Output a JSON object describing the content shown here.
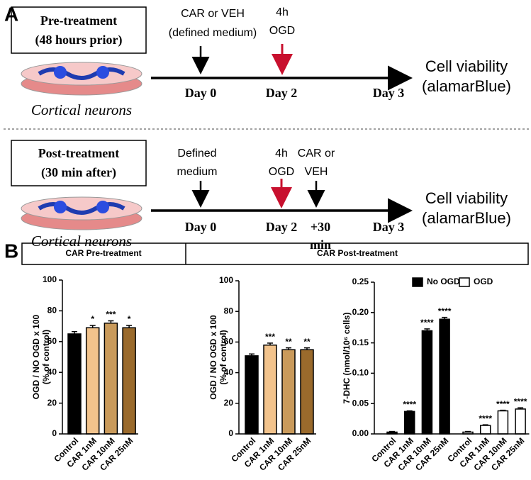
{
  "panel_a": {
    "label": "A",
    "rows": [
      {
        "box": [
          "Pre-treatment",
          "(48 hours prior)"
        ],
        "cells": "Cortical neurons",
        "events": [
          [
            "CAR or VEH",
            "(defined medium)"
          ],
          [
            "4h",
            "OGD"
          ]
        ],
        "days": [
          "Day 0",
          "Day 2",
          "Day 3"
        ],
        "result": [
          "Cell viability",
          "(alamarBlue)"
        ]
      },
      {
        "box": [
          "Post-treatment",
          "(30 min after)"
        ],
        "cells": "Cortical neurons",
        "events": [
          [
            "Defined",
            "medium"
          ],
          [
            "4h",
            "OGD"
          ],
          [
            "CAR or",
            "VEH"
          ]
        ],
        "days": [
          "Day 0",
          "Day 2",
          "+30",
          "min",
          "Day 3"
        ],
        "result": [
          "Cell viability",
          "(alamarBlue)"
        ]
      }
    ]
  },
  "panel_b": {
    "label": "B",
    "headers": [
      "CAR Pre-treatment",
      "CAR Post-treatment"
    ]
  },
  "chart_data": [
    {
      "type": "bar",
      "ylabel": [
        "OGD / NO OGD x 100",
        "(% of control)"
      ],
      "categories": [
        "Control",
        "CAR 1nM",
        "CAR 10nM",
        "CAR 25nM"
      ],
      "values": [
        65,
        69,
        72,
        69
      ],
      "errors": [
        1.5,
        1.5,
        1.5,
        1.5
      ],
      "annotations": [
        null,
        "*",
        "***",
        "*"
      ],
      "colors": [
        "#000000",
        "#f2c38c",
        "#c99a5b",
        "#9a6a2c"
      ],
      "ylim": [
        0,
        100
      ],
      "yticks": [
        0,
        20,
        40,
        60,
        80,
        100
      ]
    },
    {
      "type": "bar",
      "ylabel": [
        "OGD / NO OGD x 100",
        "(% of control)"
      ],
      "categories": [
        "Control",
        "CAR 1nM",
        "CAR 10nM",
        "CAR 25nM"
      ],
      "values": [
        51,
        58,
        55,
        55
      ],
      "errors": [
        1.2,
        1.3,
        1.2,
        1.2
      ],
      "annotations": [
        null,
        "***",
        "**",
        "**"
      ],
      "colors": [
        "#000000",
        "#f2c38c",
        "#c99a5b",
        "#9a6a2c"
      ],
      "ylim": [
        0,
        100
      ],
      "yticks": [
        0,
        20,
        40,
        60,
        80,
        100
      ]
    },
    {
      "type": "bar",
      "ylabel": [
        "7-DHC (nmol/10⁶ cells)"
      ],
      "categories": [
        "Control",
        "CAR 1nM",
        "CAR 10nM",
        "CAR 25nM"
      ],
      "series": [
        {
          "name": "No OGD",
          "color": "#000000",
          "values": [
            0.003,
            0.037,
            0.17,
            0.189
          ],
          "errors": [
            0.001,
            0.001,
            0.003,
            0.003
          ],
          "annotations": [
            null,
            "****",
            "****",
            "****"
          ]
        },
        {
          "name": "OGD",
          "color": "#ffffff",
          "values": [
            0.003,
            0.014,
            0.038,
            0.041
          ],
          "errors": [
            0.001,
            0.001,
            0.001,
            0.002
          ],
          "annotations": [
            null,
            "****",
            "****",
            "****"
          ]
        }
      ],
      "ylim": [
        0,
        0.25
      ],
      "yticks": [
        {
          "value": 0,
          "label": "0.00"
        },
        {
          "value": 0.05,
          "label": "0.05"
        },
        {
          "value": 0.1,
          "label": "0.10"
        },
        {
          "value": 0.15,
          "label": "0.15"
        },
        {
          "value": 0.2,
          "label": "0.20"
        },
        {
          "value": 0.25,
          "label": "0.25"
        }
      ]
    }
  ]
}
